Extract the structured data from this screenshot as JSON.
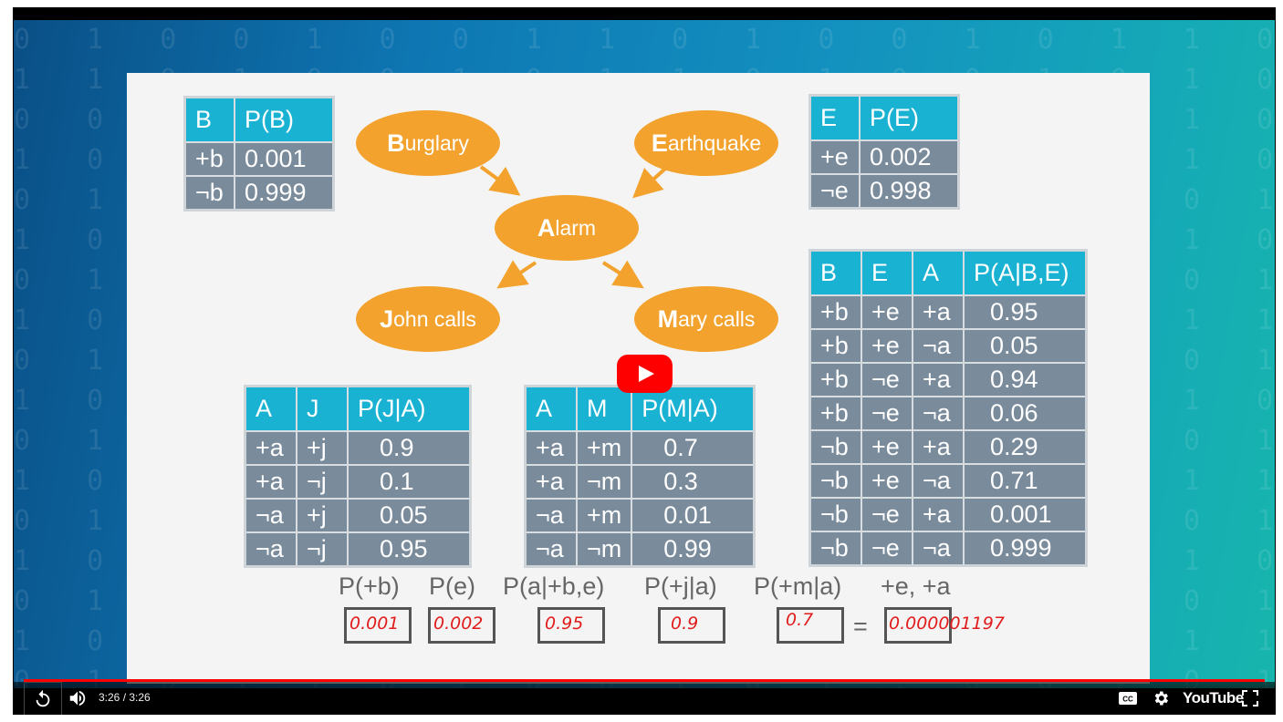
{
  "slide": {
    "nodes": {
      "burglary": {
        "first": "B",
        "rest": "urglary"
      },
      "earthquake": {
        "first": "E",
        "rest": "arthquake"
      },
      "alarm": {
        "first": "A",
        "rest": "larm"
      },
      "john": {
        "first": "J",
        "rest": "ohn calls"
      },
      "mary": {
        "first": "M",
        "rest": "ary calls"
      }
    },
    "table_b": {
      "headers": [
        "B",
        "P(B)"
      ],
      "rows": [
        [
          "+b",
          "0.001"
        ],
        [
          "¬b",
          "0.999"
        ]
      ]
    },
    "table_e": {
      "headers": [
        "E",
        "P(E)"
      ],
      "rows": [
        [
          "+e",
          "0.002"
        ],
        [
          "¬e",
          "0.998"
        ]
      ]
    },
    "table_a": {
      "headers": [
        "B",
        "E",
        "A",
        "P(A|B,E)"
      ],
      "rows": [
        [
          "+b",
          "+e",
          "+a",
          "0.95"
        ],
        [
          "+b",
          "+e",
          "¬a",
          "0.05"
        ],
        [
          "+b",
          "¬e",
          "+a",
          "0.94"
        ],
        [
          "+b",
          "¬e",
          "¬a",
          "0.06"
        ],
        [
          "¬b",
          "+e",
          "+a",
          "0.29"
        ],
        [
          "¬b",
          "+e",
          "¬a",
          "0.71"
        ],
        [
          "¬b",
          "¬e",
          "+a",
          "0.001"
        ],
        [
          "¬b",
          "¬e",
          "¬a",
          "0.999"
        ]
      ]
    },
    "table_j": {
      "headers": [
        "A",
        "J",
        "P(J|A)"
      ],
      "rows": [
        [
          "+a",
          "+j",
          "0.9"
        ],
        [
          "+a",
          "¬j",
          "0.1"
        ],
        [
          "¬a",
          "+j",
          "0.05"
        ],
        [
          "¬a",
          "¬j",
          "0.95"
        ]
      ]
    },
    "table_m": {
      "headers": [
        "A",
        "M",
        "P(M|A)"
      ],
      "rows": [
        [
          "+a",
          "+m",
          "0.7"
        ],
        [
          "+a",
          "¬m",
          "0.3"
        ],
        [
          "¬a",
          "+m",
          "0.01"
        ],
        [
          "¬a",
          "¬m",
          "0.99"
        ]
      ]
    },
    "formula": {
      "terms": [
        "P(+b)",
        "P(e)",
        "P(a|+b,e)",
        "P(+j|a)",
        "P(+m|a)",
        "+e, +a"
      ],
      "handwritten": [
        "0.001",
        "0.002",
        "0.95",
        "0.9",
        "0.7",
        "0.000001197"
      ],
      "equals": "="
    }
  },
  "player": {
    "time": "3:26 / 3:26",
    "logo": "YouTube",
    "progress_fraction": 1.0,
    "icons": [
      "replay-icon",
      "volume-icon",
      "subtitles-icon",
      "settings-icon",
      "fullscreen-icon",
      "play-icon"
    ],
    "colors": {
      "accent": "#ff0000",
      "table_header": "#1ab2d3",
      "table_cell": "#7a8b9b",
      "node": "#f2a22d"
    }
  }
}
